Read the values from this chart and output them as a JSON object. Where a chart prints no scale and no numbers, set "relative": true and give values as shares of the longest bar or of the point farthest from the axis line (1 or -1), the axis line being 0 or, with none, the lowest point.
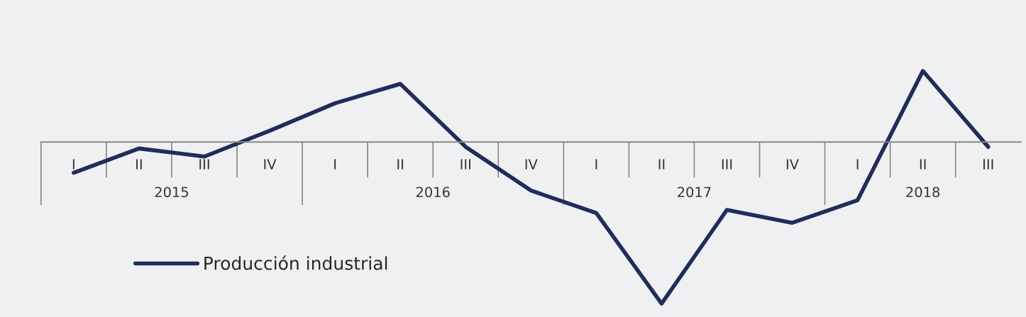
{
  "chart_data": {
    "type": "line",
    "relative": true,
    "categories": [
      "I",
      "II",
      "III",
      "IV",
      "I",
      "II",
      "III",
      "IV",
      "I",
      "II",
      "III",
      "IV",
      "I",
      "II",
      "III"
    ],
    "annotations": [
      "2015",
      "2016",
      "2017",
      "2018"
    ],
    "series": [
      {
        "name": "Producción industrial",
        "color": "#1f2d5a",
        "values": [
          -0.19,
          -0.04,
          -0.09,
          0.07,
          0.24,
          0.36,
          -0.03,
          -0.3,
          -0.44,
          -1.0,
          -0.42,
          -0.5,
          -0.36,
          0.44,
          -0.03
        ]
      }
    ],
    "legend": "bottom left",
    "grid": false,
    "marker": "none",
    "line_style": "solid"
  }
}
